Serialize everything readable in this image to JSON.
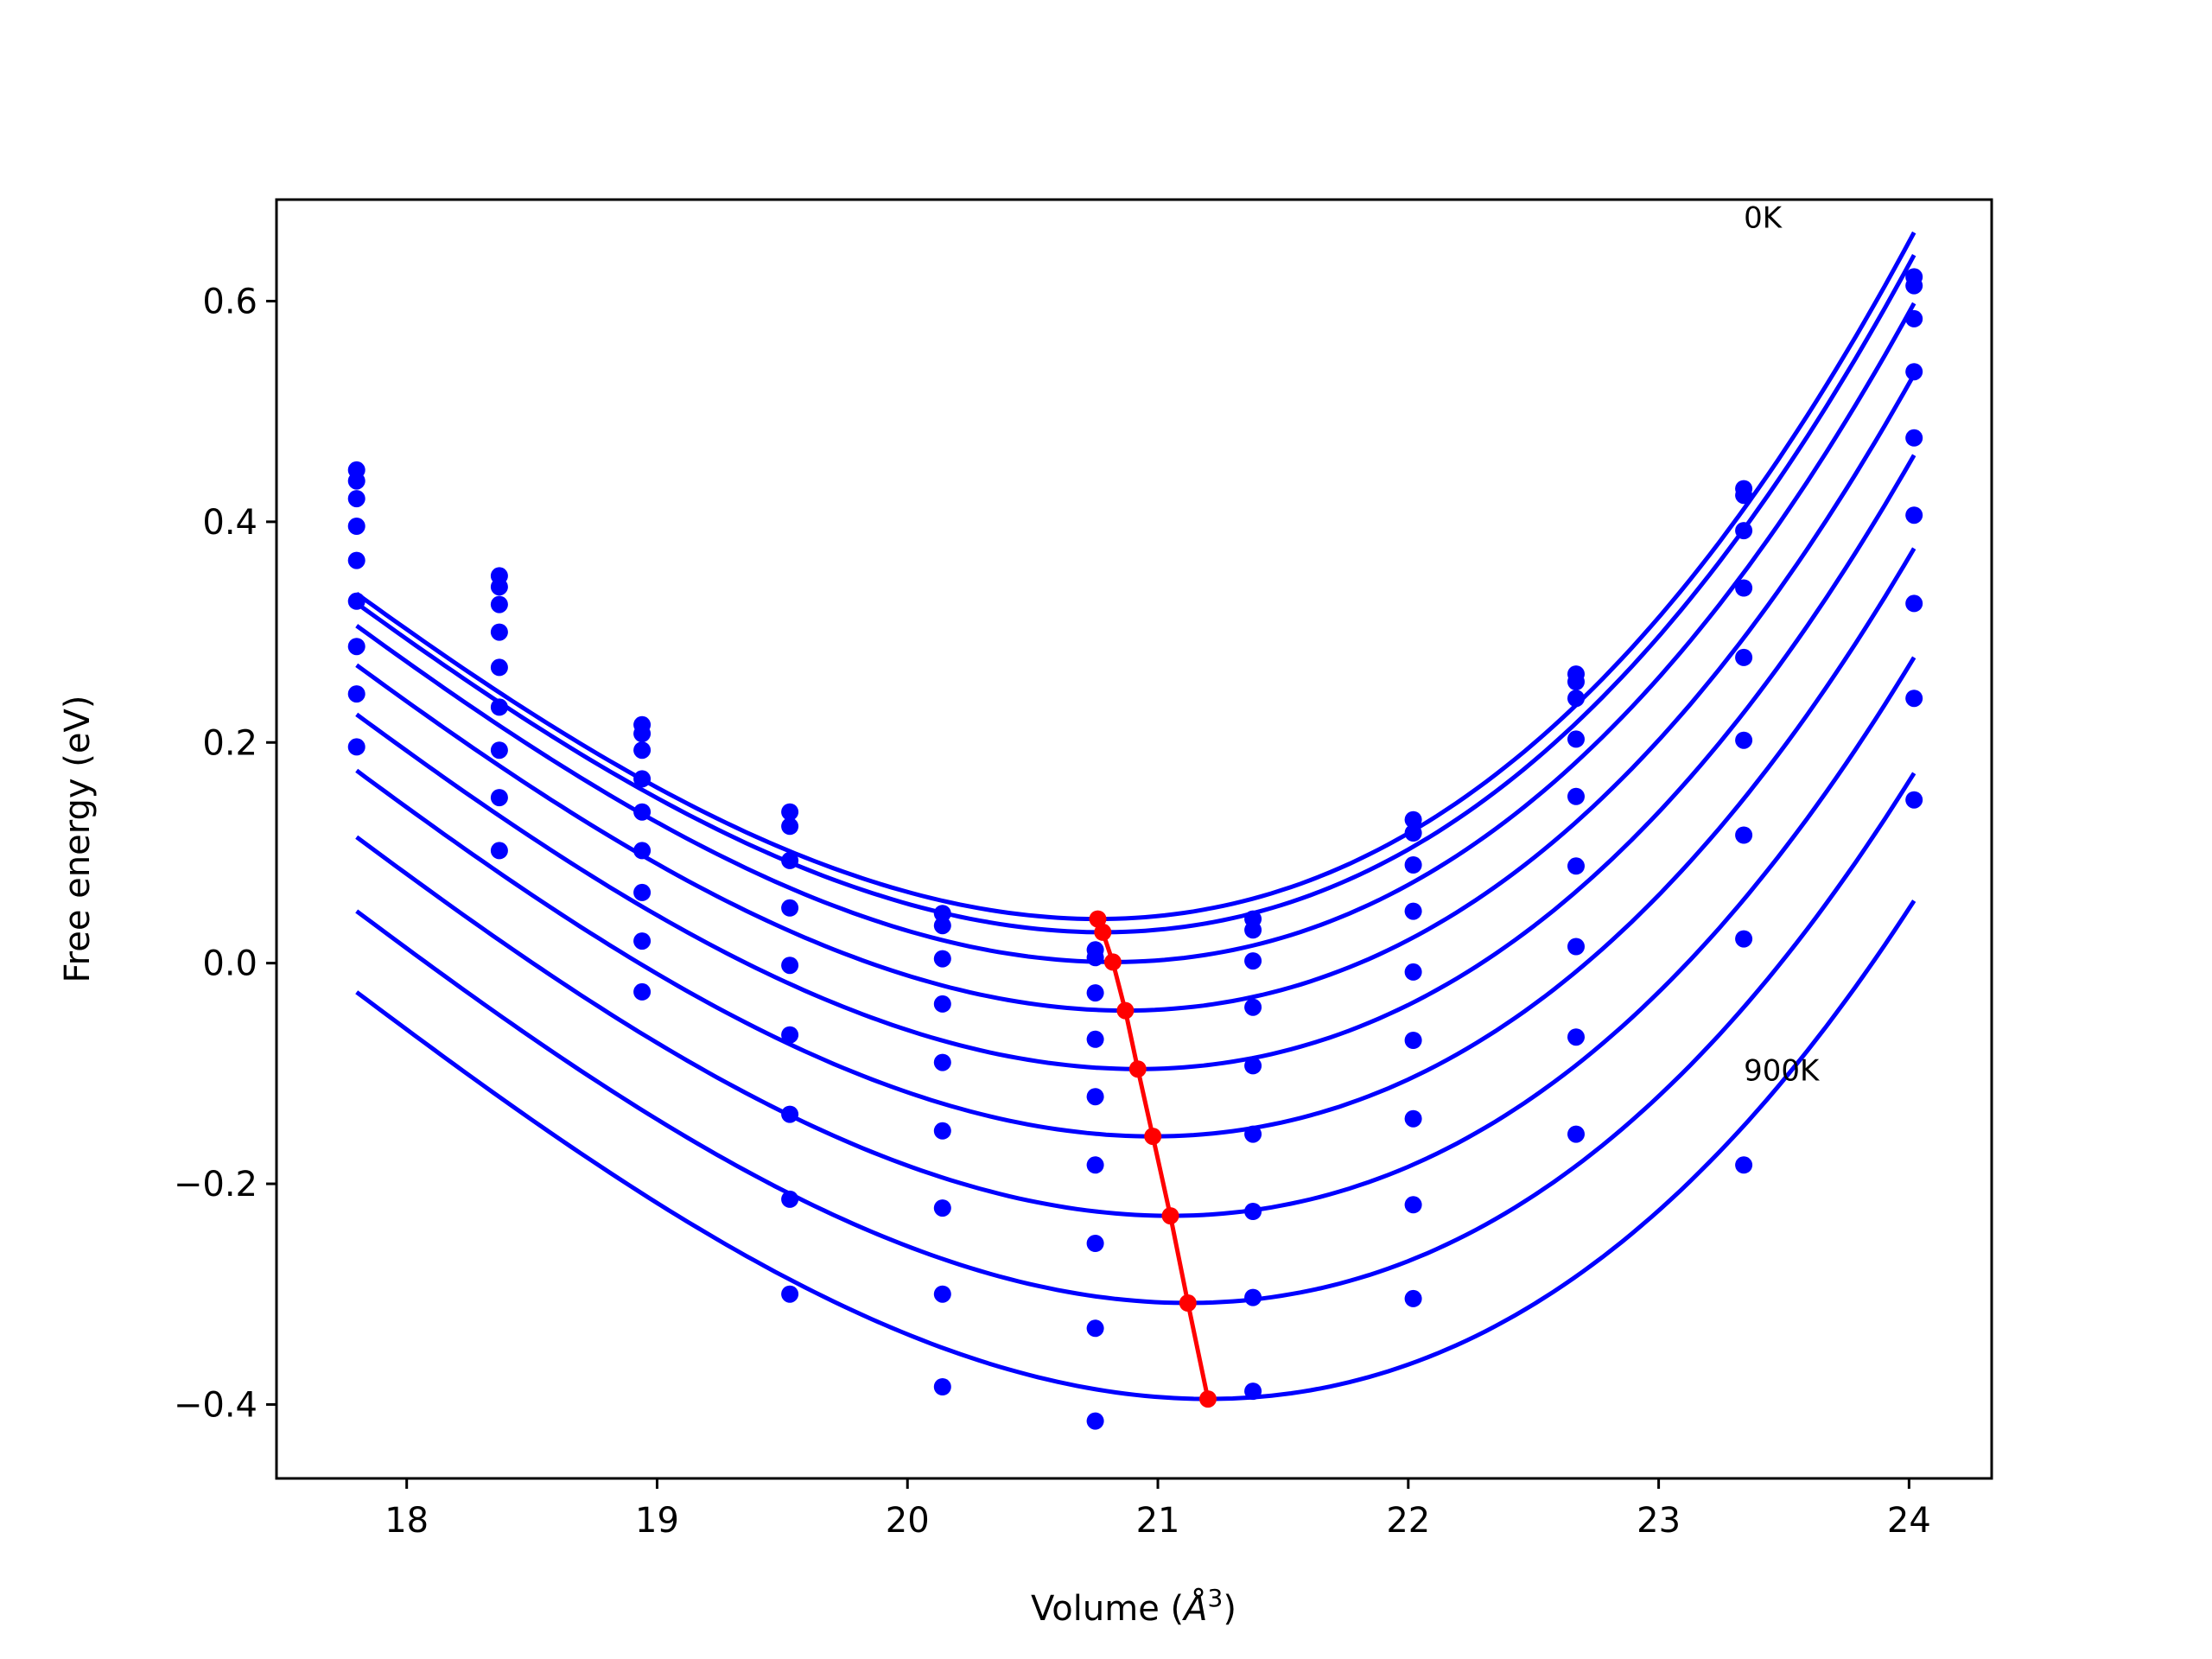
{
  "chart_data": {
    "type": "scatter",
    "title": "",
    "xlabel": "Volume (",
    "xlabel_unit": "Å",
    "xlabel_sup": "3",
    "xlabel_end": ")",
    "ylabel": "Free energy (eV)",
    "xlim": [
      17.48,
      24.33
    ],
    "ylim": [
      -0.467,
      0.692
    ],
    "xticks": [
      18,
      19,
      20,
      21,
      22,
      23,
      24
    ],
    "xtick_labels": [
      "18",
      "19",
      "20",
      "21",
      "22",
      "23",
      "24"
    ],
    "yticks": [
      -0.4,
      -0.2,
      0.0,
      0.2,
      0.4,
      0.6
    ],
    "ytick_labels": [
      "−0.4",
      "−0.2",
      "0.0",
      "0.2",
      "0.4",
      "0.6"
    ],
    "grid": false,
    "colors": {
      "fit": "#0000ff",
      "points": "#0000ff",
      "equilibrium": "#ff0000",
      "frame": "#000000"
    },
    "volumes": [
      17.8,
      18.37,
      18.94,
      19.53,
      20.14,
      20.75,
      21.38,
      22.02,
      22.67,
      23.34,
      24.02
    ],
    "series": [
      {
        "fit": {
          "v0": 20.76,
          "f0": 0.04,
          "a": 0.0455,
          "b": 0.004
        },
        "points": [
          0.447,
          0.351,
          0.216,
          0.137,
          0.045,
          0.012,
          0.04,
          0.13,
          0.262,
          0.43,
          0.622
        ]
      },
      {
        "fit": {
          "v0": 20.78,
          "f0": 0.028,
          "a": 0.0455,
          "b": 0.004
        },
        "points": [
          0.437,
          0.341,
          0.208,
          0.124,
          0.034,
          0.005,
          0.03,
          0.118,
          0.255,
          0.424,
          0.614
        ]
      },
      {
        "fit": {
          "v0": 20.82,
          "f0": 0.001,
          "a": 0.0455,
          "b": 0.004
        },
        "points": [
          0.421,
          0.325,
          0.193,
          0.093,
          0.004,
          -0.027,
          0.002,
          0.089,
          0.24,
          0.392,
          0.584
        ]
      },
      {
        "fit": {
          "v0": 20.87,
          "f0": -0.043,
          "a": 0.0455,
          "b": 0.004
        },
        "points": [
          0.396,
          0.3,
          0.167,
          0.05,
          -0.037,
          -0.069,
          -0.04,
          0.047,
          0.203,
          0.34,
          0.536
        ]
      },
      {
        "fit": {
          "v0": 20.92,
          "f0": -0.096,
          "a": 0.0455,
          "b": 0.004
        },
        "points": [
          0.365,
          0.268,
          0.137,
          -0.002,
          -0.09,
          -0.121,
          -0.093,
          -0.008,
          0.151,
          0.277,
          0.476
        ]
      },
      {
        "fit": {
          "v0": 20.98,
          "f0": -0.157,
          "a": 0.0455,
          "b": 0.004
        },
        "points": [
          0.328,
          0.232,
          0.102,
          -0.065,
          -0.152,
          -0.183,
          -0.155,
          -0.07,
          0.088,
          0.202,
          0.406
        ]
      },
      {
        "fit": {
          "v0": 21.05,
          "f0": -0.229,
          "a": 0.0455,
          "b": 0.004
        },
        "points": [
          0.287,
          0.193,
          0.064,
          -0.137,
          -0.222,
          -0.254,
          -0.225,
          -0.141,
          0.015,
          0.116,
          0.326
        ]
      },
      {
        "fit": {
          "v0": 21.12,
          "f0": -0.308,
          "a": 0.0455,
          "b": 0.004
        },
        "points": [
          0.244,
          0.15,
          0.02,
          -0.214,
          -0.3,
          -0.331,
          -0.303,
          -0.219,
          -0.067,
          0.022,
          0.24
        ]
      },
      {
        "fit": {
          "v0": 21.2,
          "f0": -0.395,
          "a": 0.0455,
          "b": 0.004
        },
        "points": [
          0.196,
          0.102,
          -0.026,
          -0.3,
          -0.384,
          -0.415,
          -0.388,
          -0.304,
          -0.155,
          -0.183,
          0.148
        ]
      }
    ],
    "equilibrium": {
      "x": [
        20.76,
        20.78,
        20.82,
        20.87,
        20.92,
        20.98,
        21.05,
        21.12,
        21.2
      ],
      "y": [
        0.04,
        0.028,
        0.001,
        -0.043,
        -0.096,
        -0.157,
        -0.229,
        -0.308,
        -0.395
      ]
    },
    "annotations": [
      {
        "text": "0K",
        "x": 23.34,
        "y": 0.68
      },
      {
        "text": "900K",
        "x": 23.34,
        "y": -0.093
      }
    ]
  }
}
